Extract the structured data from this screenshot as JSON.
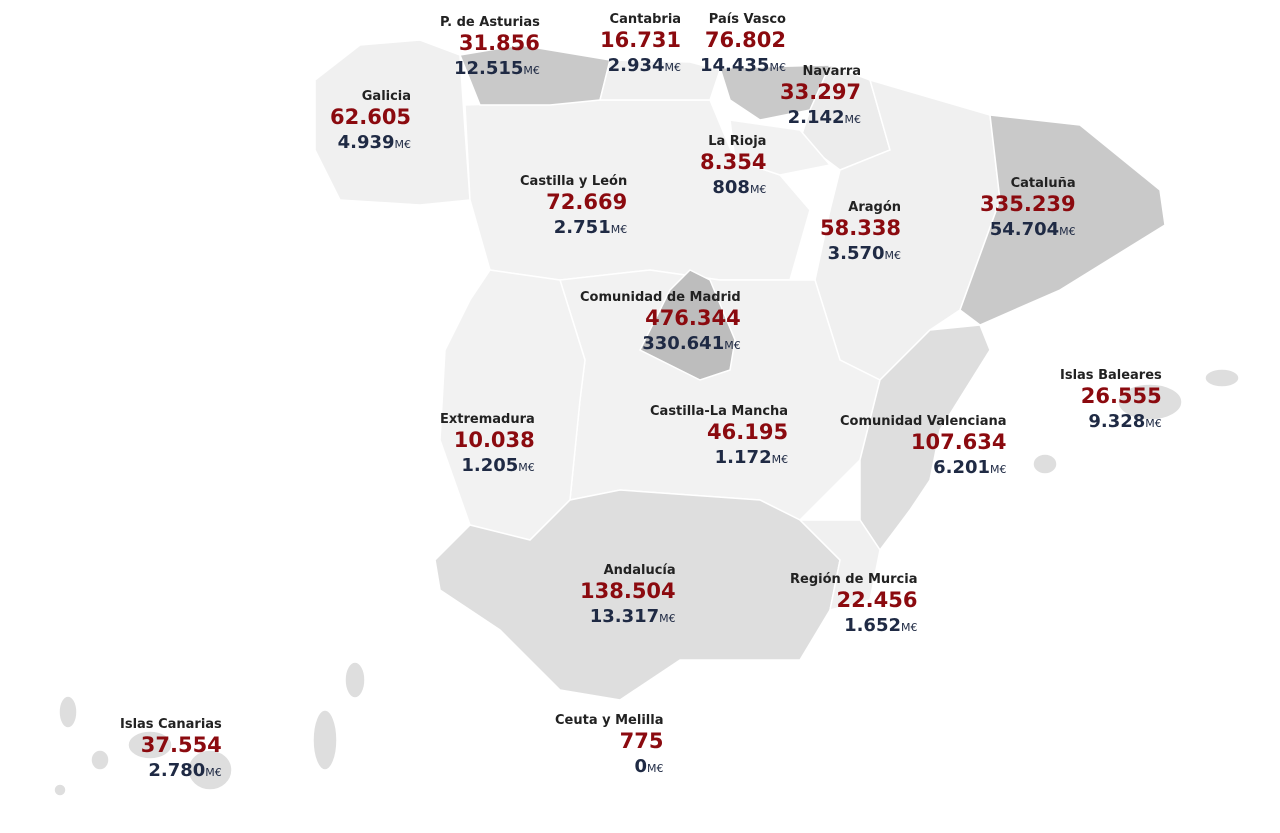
{
  "unit": "M€",
  "colors": {
    "value": "#8b0a0f",
    "amount": "#1f2a44",
    "region_light": "#f1f1f1",
    "region_mid": "#dedede",
    "region_dark": "#c9c9c9"
  },
  "regions": [
    {
      "id": "asturias",
      "name": "P. de Asturias",
      "value": "31.856",
      "amount": "12.515"
    },
    {
      "id": "cantabria",
      "name": "Cantabria",
      "value": "16.731",
      "amount": "2.934"
    },
    {
      "id": "paisvasco",
      "name": "País Vasco",
      "value": "76.802",
      "amount": "14.435"
    },
    {
      "id": "navarra",
      "name": "Navarra",
      "value": "33.297",
      "amount": "2.142"
    },
    {
      "id": "galicia",
      "name": "Galicia",
      "value": "62.605",
      "amount": "4.939"
    },
    {
      "id": "larioja",
      "name": "La Rioja",
      "value": "8.354",
      "amount": "808"
    },
    {
      "id": "cyl",
      "name": "Castilla y León",
      "value": "72.669",
      "amount": "2.751"
    },
    {
      "id": "cataluna",
      "name": "Cataluña",
      "value": "335.239",
      "amount": "54.704"
    },
    {
      "id": "aragon",
      "name": "Aragón",
      "value": "58.338",
      "amount": "3.570"
    },
    {
      "id": "madrid",
      "name": "Comunidad de Madrid",
      "value": "476.344",
      "amount": "330.641"
    },
    {
      "id": "baleares",
      "name": "Islas Baleares",
      "value": "26.555",
      "amount": "9.328"
    },
    {
      "id": "extremadura",
      "name": "Extremadura",
      "value": "10.038",
      "amount": "1.205"
    },
    {
      "id": "clm",
      "name": "Castilla-La Mancha",
      "value": "46.195",
      "amount": "1.172"
    },
    {
      "id": "valencia",
      "name": "Comunidad Valenciana",
      "value": "107.634",
      "amount": "6.201"
    },
    {
      "id": "andalucia",
      "name": "Andalucía",
      "value": "138.504",
      "amount": "13.317"
    },
    {
      "id": "murcia",
      "name": "Región de Murcia",
      "value": "22.456",
      "amount": "1.652"
    },
    {
      "id": "canarias",
      "name": "Islas Canarias",
      "value": "37.554",
      "amount": "2.780"
    },
    {
      "id": "ceuta",
      "name": "Ceuta y Melilla",
      "value": "775",
      "amount": "0"
    }
  ]
}
